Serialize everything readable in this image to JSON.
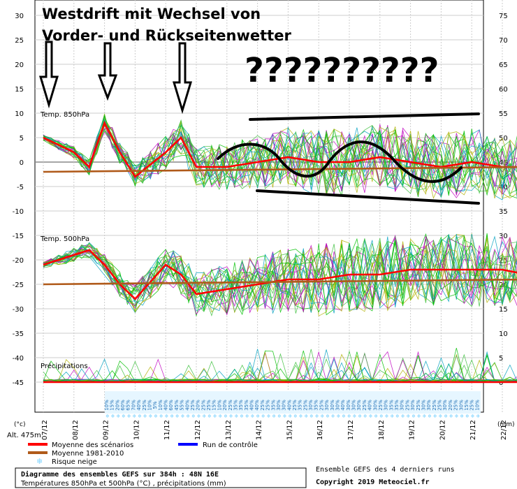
{
  "annotation": {
    "title_line1": "Westdrift mit Wechsel von",
    "title_line2": "Vorder- und Rückseitenwetter",
    "question": "??????????"
  },
  "labels": {
    "t850": "Temp. 850hPa",
    "t500": "Temp. 500hPa",
    "precip": "Précipitations",
    "unit_left": "(°c)",
    "unit_right": "(mm)",
    "alt": "Alt. 475m"
  },
  "legend": {
    "mean": "Moyenne des scénarios",
    "control": "Run de contrôle",
    "climate": "Moyenne 1981-2010",
    "snow": "Risque neige"
  },
  "footer": {
    "box_line1": "Diagramme des ensembles GEFS sur 384h : 48N 16E",
    "box_line2": "Températures 850hPa et 500hPa (°C) , précipitations (mm)",
    "right_line1": "Ensemble GEFS des 4 derniers runs",
    "right_line2": "Copyright 2019 Meteociel.fr"
  },
  "colors": {
    "mean": "#ff0000",
    "control": "#0000ff",
    "climate": "#b05a1a",
    "snow": "#7fd4ff",
    "members": [
      "#00c000",
      "#c000c0",
      "#b0b000",
      "#00a0c0",
      "#3cc03c"
    ]
  },
  "chart_data": {
    "type": "line",
    "x_ticks": [
      "07/12",
      "08/12",
      "09/12",
      "10/12",
      "11/12",
      "12/12",
      "13/12",
      "14/12",
      "15/12",
      "16/12",
      "17/12",
      "18/12",
      "19/12",
      "20/12",
      "21/12",
      "22/12"
    ],
    "left_axis": {
      "ticks": [
        30,
        25,
        20,
        15,
        10,
        5,
        0,
        -5,
        -10,
        -15,
        -20,
        -25,
        -30,
        -35,
        -40,
        -45
      ]
    },
    "right_axis": {
      "ticks": [
        75,
        70,
        65,
        60,
        55,
        50,
        45,
        40,
        35,
        30,
        25,
        20,
        15,
        10,
        5,
        0
      ]
    },
    "series": [
      {
        "name": "Moyenne des scénarios",
        "panel": "850hPa",
        "x": [
          0,
          1,
          1.5,
          2,
          2.5,
          3,
          4,
          4.5,
          5,
          6,
          7,
          8,
          9,
          10,
          11,
          12,
          13,
          14,
          15,
          15.8
        ],
        "values": [
          5,
          2,
          -1,
          8,
          2,
          -3,
          2,
          5,
          -1,
          -1,
          0,
          1,
          0,
          0,
          1,
          0,
          -1,
          0,
          -1,
          -1
        ]
      },
      {
        "name": "Moyenne 1981-2010",
        "panel": "850hPa",
        "x": [
          0,
          15.8
        ],
        "values": [
          -2,
          -1
        ]
      },
      {
        "name": "Moyenne des scénarios",
        "panel": "500hPa",
        "x": [
          0,
          1,
          1.5,
          2,
          2.5,
          3,
          4,
          4.5,
          5,
          6,
          7,
          8,
          9,
          10,
          11,
          12,
          13,
          14,
          15,
          15.8
        ],
        "values": [
          -21,
          -19,
          -18,
          -21,
          -25,
          -28,
          -21,
          -23,
          -27,
          -26,
          -25,
          -24,
          -24,
          -23,
          -23,
          -22,
          -22,
          -22,
          -22,
          -23
        ]
      },
      {
        "name": "Moyenne 1981-2010",
        "panel": "500hPa",
        "x": [
          0,
          15.8
        ],
        "values": [
          -25,
          -24
        ]
      }
    ],
    "snow_risk_pct": [
      "10%",
      "15%",
      "20%",
      "60%",
      "65%",
      "70%",
      "40%",
      "25%",
      "10%",
      "5%",
      "10%",
      "40%",
      "60%",
      "45%",
      "55%",
      "40%",
      "25%",
      "20%",
      "25%",
      "25%",
      "15%",
      "10%",
      "20%",
      "25%",
      "35%",
      "35%",
      "35%",
      "40%",
      "40%",
      "25%",
      "25%",
      "35%",
      "30%",
      "30%",
      "40%",
      "25%",
      "35%",
      "25%",
      "30%",
      "35%",
      "25%",
      "30%",
      "30%",
      "30%",
      "40%",
      "30%",
      "30%",
      "30%",
      "25%",
      "40%",
      "30%",
      "25%",
      "30%",
      "35%",
      "35%",
      "30%",
      "25%",
      "30%",
      "25%",
      "30%",
      "30%",
      "25%",
      "25%",
      "30%",
      "20%",
      "25%",
      "30%",
      "15%",
      "25%",
      "10%"
    ]
  }
}
